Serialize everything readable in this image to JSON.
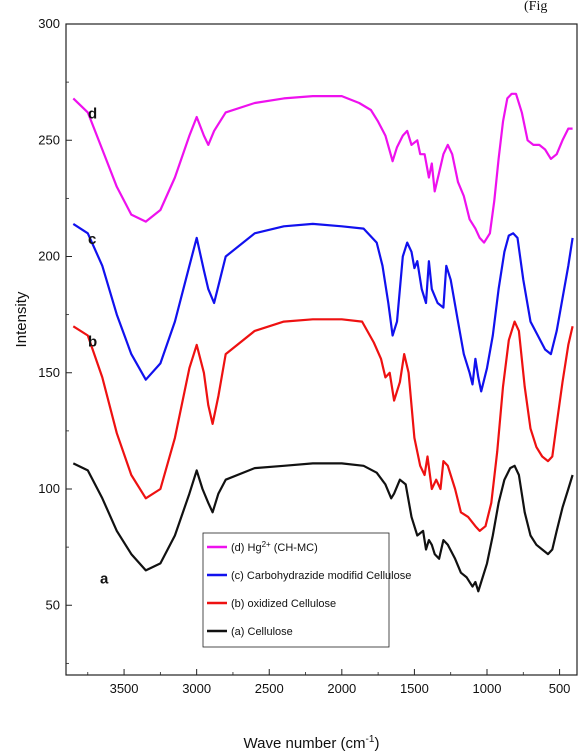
{
  "corner_text": "(Fig",
  "chart_data": {
    "type": "line",
    "title": "",
    "xlabel": "Wave number (cm",
    "xlabel_sup": "-1",
    "xlabel_end": ")",
    "ylabel": "Intensity",
    "xlim": [
      3900,
      380
    ],
    "ylim": [
      20,
      300
    ],
    "x_reversed": true,
    "xticks": [
      3500,
      3000,
      2500,
      2000,
      1500,
      1000,
      500
    ],
    "yticks": [
      50,
      100,
      150,
      200,
      250,
      300
    ],
    "legend_position": "bottom-center",
    "series": [
      {
        "name": "(d)  Hg",
        "name_sup": "2+",
        "name_end": " (CH-MC)",
        "letter": "d",
        "color": "#ee11ee",
        "points": [
          [
            3850,
            268
          ],
          [
            3750,
            262
          ],
          [
            3650,
            246
          ],
          [
            3550,
            230
          ],
          [
            3450,
            218
          ],
          [
            3350,
            215
          ],
          [
            3250,
            220
          ],
          [
            3150,
            234
          ],
          [
            3050,
            252
          ],
          [
            3000,
            260
          ],
          [
            2950,
            252
          ],
          [
            2920,
            248
          ],
          [
            2880,
            254
          ],
          [
            2800,
            262
          ],
          [
            2600,
            266
          ],
          [
            2400,
            268
          ],
          [
            2200,
            269
          ],
          [
            2000,
            269
          ],
          [
            1880,
            266
          ],
          [
            1800,
            263
          ],
          [
            1750,
            258
          ],
          [
            1700,
            252
          ],
          [
            1650,
            241
          ],
          [
            1620,
            247
          ],
          [
            1580,
            252
          ],
          [
            1550,
            254
          ],
          [
            1520,
            248
          ],
          [
            1480,
            250
          ],
          [
            1460,
            244
          ],
          [
            1430,
            244
          ],
          [
            1400,
            234
          ],
          [
            1380,
            240
          ],
          [
            1360,
            228
          ],
          [
            1330,
            236
          ],
          [
            1300,
            244
          ],
          [
            1270,
            248
          ],
          [
            1240,
            244
          ],
          [
            1200,
            232
          ],
          [
            1160,
            226
          ],
          [
            1120,
            216
          ],
          [
            1080,
            212
          ],
          [
            1050,
            208
          ],
          [
            1020,
            206
          ],
          [
            980,
            210
          ],
          [
            950,
            224
          ],
          [
            920,
            242
          ],
          [
            890,
            258
          ],
          [
            860,
            268
          ],
          [
            830,
            270
          ],
          [
            800,
            270
          ],
          [
            760,
            262
          ],
          [
            720,
            250
          ],
          [
            680,
            248
          ],
          [
            640,
            248
          ],
          [
            600,
            246
          ],
          [
            560,
            242
          ],
          [
            520,
            244
          ],
          [
            480,
            250
          ],
          [
            440,
            255
          ],
          [
            410,
            255
          ]
        ]
      },
      {
        "name": "(c)  Carbohydrazide modifid Cellulose",
        "letter": "c",
        "color": "#1111ee",
        "points": [
          [
            3850,
            214
          ],
          [
            3750,
            210
          ],
          [
            3650,
            196
          ],
          [
            3550,
            175
          ],
          [
            3450,
            158
          ],
          [
            3350,
            147
          ],
          [
            3250,
            154
          ],
          [
            3150,
            172
          ],
          [
            3050,
            196
          ],
          [
            3000,
            208
          ],
          [
            2950,
            194
          ],
          [
            2920,
            186
          ],
          [
            2880,
            180
          ],
          [
            2840,
            190
          ],
          [
            2800,
            200
          ],
          [
            2600,
            210
          ],
          [
            2400,
            213
          ],
          [
            2200,
            214
          ],
          [
            2000,
            213
          ],
          [
            1850,
            212
          ],
          [
            1760,
            206
          ],
          [
            1720,
            196
          ],
          [
            1680,
            180
          ],
          [
            1650,
            166
          ],
          [
            1620,
            172
          ],
          [
            1580,
            200
          ],
          [
            1550,
            206
          ],
          [
            1520,
            202
          ],
          [
            1500,
            195
          ],
          [
            1480,
            198
          ],
          [
            1450,
            186
          ],
          [
            1420,
            180
          ],
          [
            1400,
            198
          ],
          [
            1380,
            186
          ],
          [
            1340,
            180
          ],
          [
            1300,
            178
          ],
          [
            1280,
            196
          ],
          [
            1250,
            190
          ],
          [
            1200,
            172
          ],
          [
            1160,
            158
          ],
          [
            1120,
            150
          ],
          [
            1100,
            145
          ],
          [
            1080,
            156
          ],
          [
            1060,
            148
          ],
          [
            1040,
            142
          ],
          [
            1000,
            152
          ],
          [
            960,
            166
          ],
          [
            920,
            186
          ],
          [
            880,
            202
          ],
          [
            850,
            209
          ],
          [
            820,
            210
          ],
          [
            790,
            208
          ],
          [
            750,
            190
          ],
          [
            700,
            172
          ],
          [
            650,
            166
          ],
          [
            600,
            160
          ],
          [
            560,
            158
          ],
          [
            520,
            168
          ],
          [
            480,
            182
          ],
          [
            440,
            196
          ],
          [
            410,
            208
          ]
        ]
      },
      {
        "name": "(b)  oxidized Cellulose",
        "letter": "b",
        "color": "#ee1111",
        "points": [
          [
            3850,
            170
          ],
          [
            3750,
            166
          ],
          [
            3650,
            148
          ],
          [
            3550,
            124
          ],
          [
            3450,
            106
          ],
          [
            3350,
            96
          ],
          [
            3250,
            100
          ],
          [
            3150,
            122
          ],
          [
            3050,
            152
          ],
          [
            3000,
            162
          ],
          [
            2950,
            150
          ],
          [
            2920,
            136
          ],
          [
            2890,
            128
          ],
          [
            2850,
            140
          ],
          [
            2800,
            158
          ],
          [
            2600,
            168
          ],
          [
            2400,
            172
          ],
          [
            2200,
            173
          ],
          [
            2000,
            173
          ],
          [
            1860,
            172
          ],
          [
            1780,
            163
          ],
          [
            1730,
            156
          ],
          [
            1700,
            148
          ],
          [
            1670,
            150
          ],
          [
            1640,
            138
          ],
          [
            1600,
            146
          ],
          [
            1570,
            158
          ],
          [
            1540,
            150
          ],
          [
            1500,
            122
          ],
          [
            1460,
            110
          ],
          [
            1430,
            106
          ],
          [
            1410,
            114
          ],
          [
            1380,
            100
          ],
          [
            1350,
            104
          ],
          [
            1320,
            100
          ],
          [
            1300,
            112
          ],
          [
            1270,
            110
          ],
          [
            1220,
            100
          ],
          [
            1180,
            90
          ],
          [
            1130,
            88
          ],
          [
            1080,
            84
          ],
          [
            1050,
            82
          ],
          [
            1010,
            84
          ],
          [
            970,
            94
          ],
          [
            930,
            116
          ],
          [
            890,
            144
          ],
          [
            850,
            164
          ],
          [
            810,
            172
          ],
          [
            780,
            168
          ],
          [
            740,
            144
          ],
          [
            700,
            126
          ],
          [
            660,
            118
          ],
          [
            620,
            114
          ],
          [
            580,
            112
          ],
          [
            550,
            114
          ],
          [
            520,
            128
          ],
          [
            480,
            146
          ],
          [
            440,
            162
          ],
          [
            410,
            170
          ]
        ]
      },
      {
        "name": "(a)  Cellulose",
        "letter": "a",
        "color": "#111111",
        "points": [
          [
            3850,
            111
          ],
          [
            3750,
            108
          ],
          [
            3650,
            96
          ],
          [
            3550,
            82
          ],
          [
            3450,
            72
          ],
          [
            3350,
            65
          ],
          [
            3250,
            68
          ],
          [
            3150,
            80
          ],
          [
            3050,
            98
          ],
          [
            3000,
            108
          ],
          [
            2960,
            100
          ],
          [
            2920,
            94
          ],
          [
            2890,
            90
          ],
          [
            2850,
            98
          ],
          [
            2800,
            104
          ],
          [
            2600,
            109
          ],
          [
            2400,
            110
          ],
          [
            2200,
            111
          ],
          [
            2000,
            111
          ],
          [
            1850,
            110
          ],
          [
            1760,
            107
          ],
          [
            1700,
            102
          ],
          [
            1660,
            96
          ],
          [
            1640,
            98
          ],
          [
            1600,
            104
          ],
          [
            1560,
            102
          ],
          [
            1520,
            88
          ],
          [
            1480,
            80
          ],
          [
            1440,
            82
          ],
          [
            1420,
            74
          ],
          [
            1400,
            78
          ],
          [
            1380,
            76
          ],
          [
            1360,
            72
          ],
          [
            1330,
            70
          ],
          [
            1300,
            78
          ],
          [
            1270,
            76
          ],
          [
            1220,
            70
          ],
          [
            1180,
            64
          ],
          [
            1140,
            62
          ],
          [
            1100,
            58
          ],
          [
            1080,
            60
          ],
          [
            1060,
            56
          ],
          [
            1040,
            60
          ],
          [
            1000,
            68
          ],
          [
            960,
            80
          ],
          [
            920,
            94
          ],
          [
            880,
            104
          ],
          [
            840,
            109
          ],
          [
            810,
            110
          ],
          [
            780,
            106
          ],
          [
            740,
            90
          ],
          [
            700,
            80
          ],
          [
            660,
            76
          ],
          [
            620,
            74
          ],
          [
            580,
            72
          ],
          [
            550,
            74
          ],
          [
            520,
            82
          ],
          [
            480,
            92
          ],
          [
            440,
            100
          ],
          [
            410,
            106
          ]
        ]
      }
    ]
  }
}
